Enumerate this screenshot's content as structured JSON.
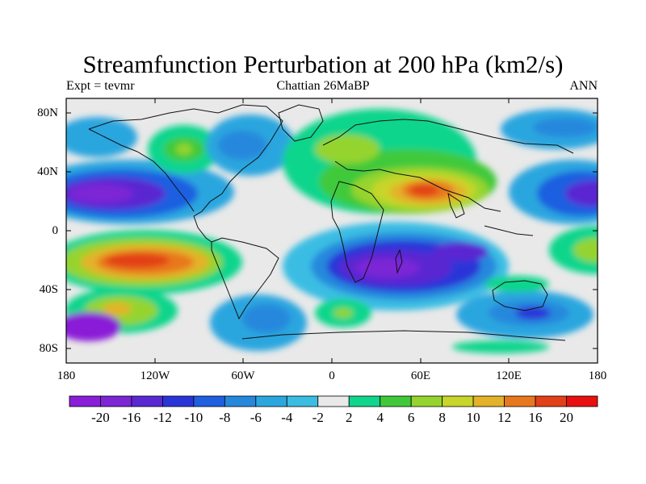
{
  "title": "Streamfunction Perturbation at 200 hPa (km2/s)",
  "subtitle_left": "Expt = tevmr",
  "subtitle_center": "Chattian  26MaBP",
  "subtitle_right": "ANN",
  "lat_labels": [
    "80N",
    "40N",
    "0",
    "40S",
    "80S"
  ],
  "lon_labels": [
    "180",
    "120W",
    "60W",
    "0",
    "60E",
    "120E",
    "180"
  ],
  "colorbar": {
    "labels": [
      "-20",
      "-16",
      "-12",
      "-10",
      "-8",
      "-6",
      "-4",
      "-2",
      "2",
      "4",
      "6",
      "8",
      "10",
      "12",
      "16",
      "20"
    ],
    "colors": [
      "#8a1ed8",
      "#7c26d6",
      "#5a28d2",
      "#2a35d8",
      "#1f5fe0",
      "#2688dd",
      "#2ca6df",
      "#3bbde3",
      "#e9e9e9",
      "#10d58c",
      "#3fc93a",
      "#95d42f",
      "#c8d52a",
      "#e3b22a",
      "#e8781f",
      "#e24018",
      "#e81010"
    ]
  }
}
